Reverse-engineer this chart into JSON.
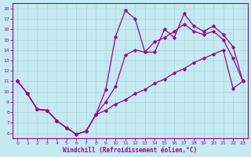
{
  "xlabel": "Windchill (Refroidissement éolien,°C)",
  "bg_color": "#c5eaf0",
  "grid_color": "#a8d8e2",
  "line_color": "#990099",
  "xlim_min": -0.5,
  "xlim_max": 23.5,
  "ylim_min": 5.5,
  "ylim_max": 18.5,
  "xticks": [
    0,
    1,
    2,
    3,
    4,
    5,
    6,
    7,
    8,
    9,
    10,
    11,
    12,
    13,
    14,
    15,
    16,
    17,
    18,
    19,
    20,
    21,
    22,
    23
  ],
  "yticks": [
    6,
    7,
    8,
    9,
    10,
    11,
    12,
    13,
    14,
    15,
    16,
    17,
    18
  ],
  "line1_x": [
    0,
    1,
    2,
    3,
    4,
    5,
    6,
    7,
    8,
    9,
    10,
    11,
    12,
    13,
    14,
    15,
    16,
    17,
    18,
    19,
    20,
    21,
    22,
    23
  ],
  "line1_y": [
    11.0,
    9.8,
    8.3,
    8.2,
    7.2,
    6.5,
    5.9,
    6.2,
    7.8,
    10.2,
    15.3,
    17.8,
    17.0,
    13.8,
    13.8,
    16.0,
    15.2,
    17.5,
    16.3,
    15.8,
    16.3,
    15.5,
    14.3,
    11.0
  ],
  "line2_x": [
    0,
    1,
    2,
    3,
    4,
    5,
    6,
    7,
    8,
    9,
    10,
    11,
    12,
    13,
    14,
    15,
    16,
    17,
    18,
    19,
    20,
    21,
    22,
    23
  ],
  "line2_y": [
    11.0,
    9.8,
    8.3,
    8.2,
    7.2,
    6.5,
    5.9,
    6.2,
    7.8,
    9.0,
    10.5,
    13.5,
    14.0,
    13.8,
    14.8,
    15.2,
    15.8,
    16.5,
    15.8,
    15.5,
    15.8,
    15.0,
    13.2,
    11.0
  ],
  "line3_x": [
    0,
    1,
    2,
    3,
    4,
    5,
    6,
    7,
    8,
    9,
    10,
    11,
    12,
    13,
    14,
    15,
    16,
    17,
    18,
    19,
    20,
    21,
    22,
    23
  ],
  "line3_y": [
    11.0,
    9.8,
    8.3,
    8.2,
    7.2,
    6.5,
    5.9,
    6.2,
    7.8,
    8.2,
    8.8,
    9.2,
    9.8,
    10.2,
    10.8,
    11.2,
    11.8,
    12.2,
    12.8,
    13.2,
    13.6,
    14.0,
    10.3,
    11.0
  ]
}
